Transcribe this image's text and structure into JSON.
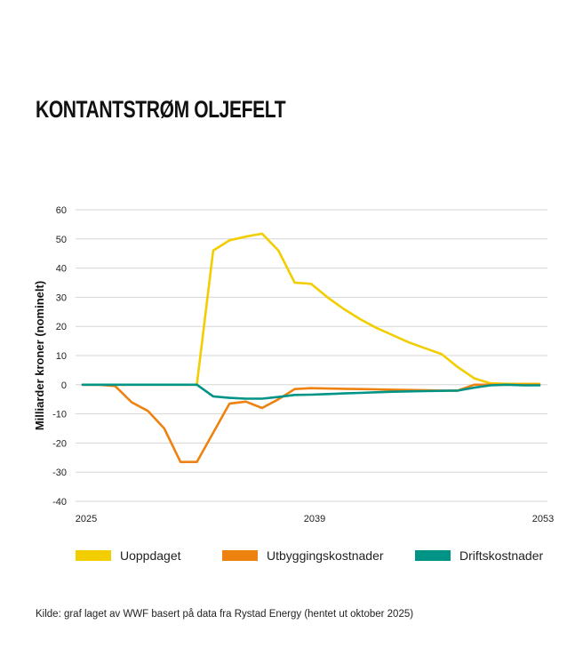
{
  "title": "KONTANTSTRØM OLJEFELT",
  "source": "Kilde: graf laget av WWF basert på data fra Rystad Energy (hentet ut oktober 2025)",
  "colors": {
    "Uoppdaget": "#f2cd00",
    "Utbyggingskostnader": "#ee8210",
    "Driftskostnader": "#009486",
    "grid": "#d6d6d6"
  },
  "legend": [
    {
      "label": "Uoppdaget"
    },
    {
      "label": "Utbyggingskostnader"
    },
    {
      "label": "Driftskostnader"
    }
  ],
  "chart_data": {
    "type": "line",
    "ylabel": "Milliarder kroner (nominelt)",
    "xlabel": "",
    "ylim": [
      -40,
      60
    ],
    "yticks": [
      "60",
      "50",
      "40",
      "30",
      "20",
      "10",
      "0",
      "-10",
      "-20",
      "-30",
      "-40"
    ],
    "xticks": [
      "2025",
      "2039",
      "2053"
    ],
    "grid": true,
    "legend_position": "bottom",
    "x": [
      2025,
      2026,
      2027,
      2028,
      2029,
      2030,
      2031,
      2032,
      2033,
      2034,
      2035,
      2036,
      2037,
      2038,
      2039,
      2040,
      2041,
      2042,
      2043,
      2044,
      2045,
      2046,
      2047,
      2048,
      2049,
      2050,
      2051,
      2052,
      2053
    ],
    "series": [
      {
        "name": "Uoppdaget",
        "values": [
          0,
          0,
          0,
          0,
          0,
          0,
          0,
          0,
          46,
          49.5,
          50.8,
          51.8,
          46,
          35,
          34.6,
          30,
          26,
          22.5,
          19.5,
          17,
          14.5,
          12.5,
          10.5,
          6,
          2.2,
          0.5,
          0.3,
          0.3,
          0.3
        ]
      },
      {
        "name": "Utbyggingskostnader",
        "values": [
          0,
          0,
          -0.5,
          -6,
          -9,
          -15,
          -26.5,
          -26.5,
          -16.5,
          -6.5,
          -5.8,
          -8,
          -5,
          -1.5,
          -1.2,
          -1.3,
          -1.4,
          -1.5,
          -1.6,
          -1.7,
          -1.8,
          -1.9,
          -2,
          -2,
          0,
          0,
          0,
          0,
          0
        ]
      },
      {
        "name": "Driftskostnader",
        "values": [
          0,
          0,
          0,
          0,
          0,
          0,
          0,
          0,
          -4,
          -4.5,
          -4.8,
          -4.8,
          -4.2,
          -3.5,
          -3.4,
          -3.2,
          -3,
          -2.8,
          -2.6,
          -2.4,
          -2.3,
          -2.2,
          -2.1,
          -2,
          -1,
          -0.2,
          0,
          -0.2,
          -0.2
        ]
      }
    ]
  }
}
